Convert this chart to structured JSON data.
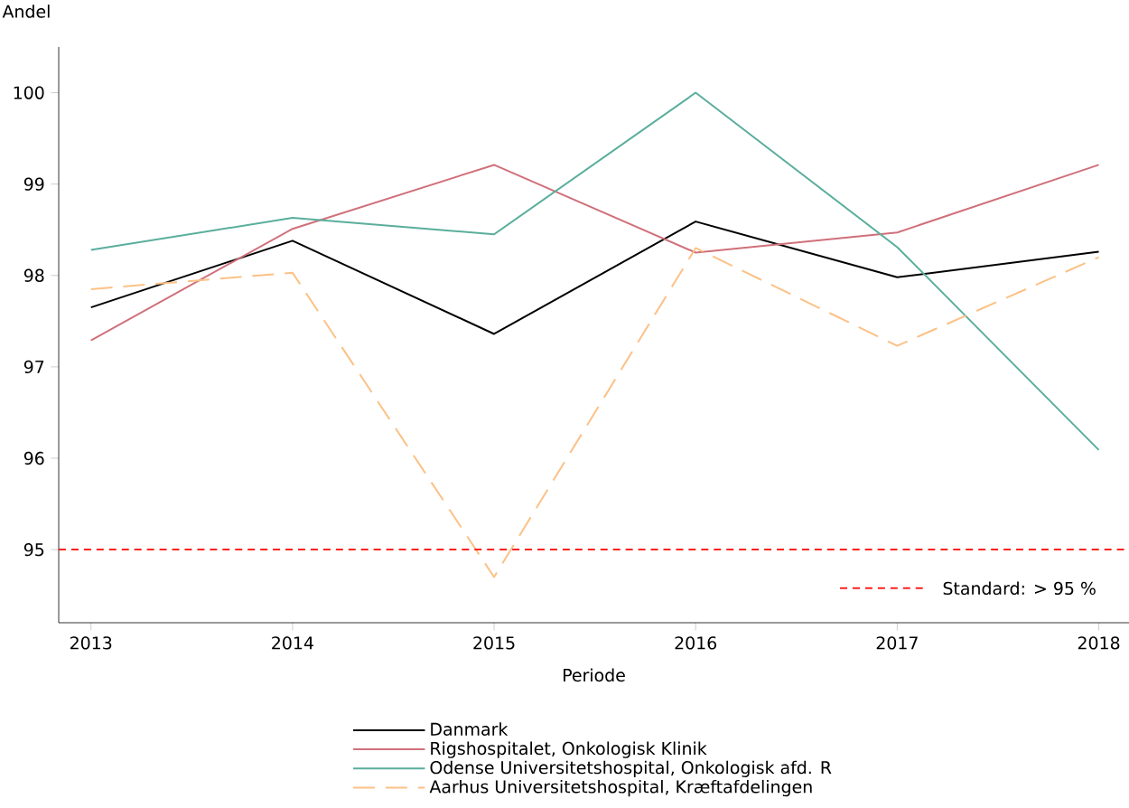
{
  "chart_data": {
    "type": "line",
    "xlabel": "Periode",
    "ylabel": "Andel",
    "categories": [
      "2013",
      "2014",
      "2015",
      "2016",
      "2017",
      "2018"
    ],
    "series": [
      {
        "name": "Danmark",
        "color": "#000000",
        "line_style": "solid",
        "values": [
          97.65,
          98.38,
          97.36,
          98.59,
          97.98,
          98.26
        ]
      },
      {
        "name": "Rigshospitalet, Onkologisk Klinik",
        "color": "#d0707a",
        "line_style": "solid",
        "values": [
          97.29,
          98.51,
          99.21,
          98.25,
          98.47,
          99.21
        ]
      },
      {
        "name": "Odense Universitetshospital, Onkologisk afd. R",
        "color": "#5aae9c",
        "line_style": "solid",
        "values": [
          98.28,
          98.63,
          98.45,
          100.0,
          98.31,
          96.09
        ]
      },
      {
        "name": "Aarhus Universitetshospital, Kræftafdelingen",
        "color": "#fbc186",
        "line_style": "dashed",
        "values": [
          97.85,
          98.03,
          94.7,
          98.3,
          97.23,
          98.2
        ]
      }
    ],
    "ylim": [
      94.2,
      100.5
    ],
    "yticks": [
      95,
      96,
      97,
      98,
      99,
      100
    ],
    "ref_lines": [
      {
        "axis": "y",
        "value": 95,
        "label": "Standard: > 95 %",
        "color": "#ff2020",
        "line_style": "densely dashed"
      }
    ],
    "grid": false,
    "legend": "bottom"
  }
}
